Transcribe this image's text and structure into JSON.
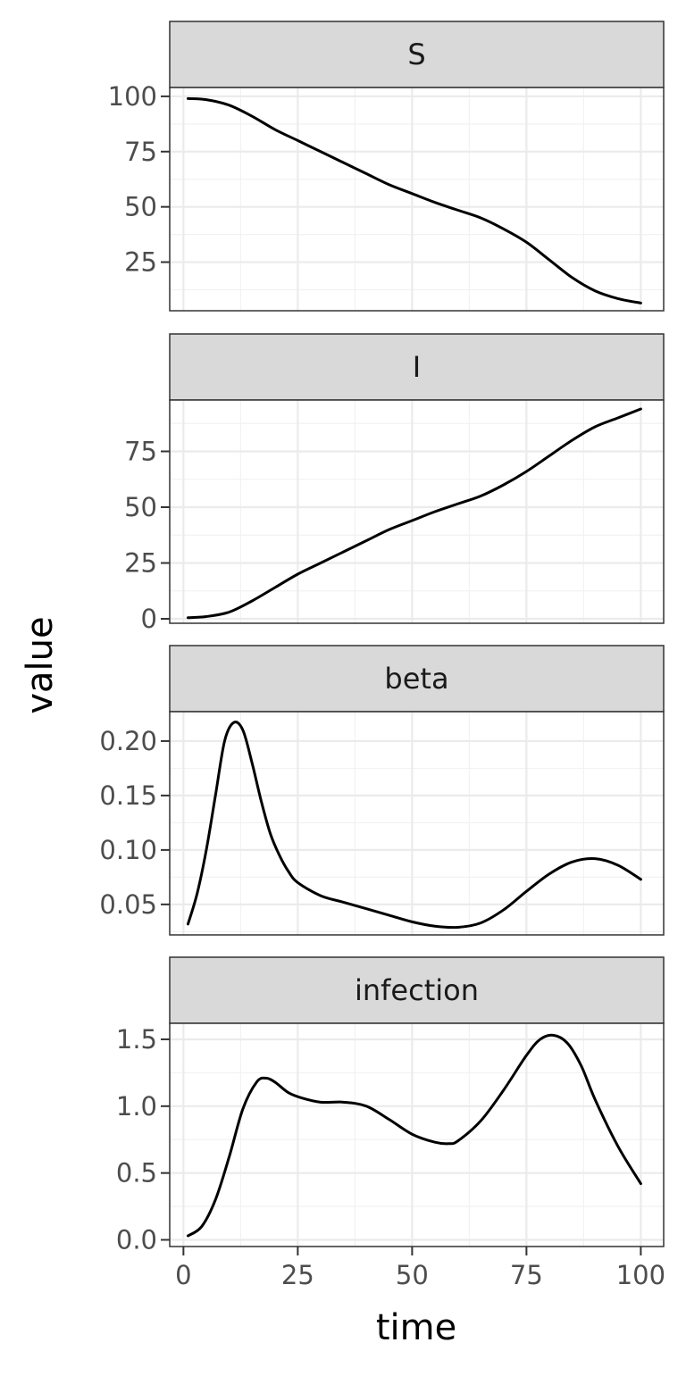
{
  "chart_data": {
    "type": "line",
    "xlabel": "time",
    "ylabel": "value",
    "xlim": [
      -3,
      105
    ],
    "x_ticks": [
      0,
      25,
      50,
      75,
      100
    ],
    "x_tick_labels": [
      "0",
      "25",
      "50",
      "75",
      "100"
    ],
    "grid": "on",
    "line_color": "#000000",
    "panels": [
      {
        "name": "S",
        "ylim": [
          3,
          104
        ],
        "y_ticks": [
          25,
          50,
          75,
          100
        ],
        "y_tick_labels": [
          "25",
          "50",
          "75",
          "100"
        ],
        "x": [
          1,
          5,
          10,
          15,
          20,
          25,
          30,
          35,
          40,
          45,
          50,
          55,
          60,
          65,
          70,
          75,
          80,
          85,
          90,
          95,
          100
        ],
        "values": [
          99,
          98.5,
          96,
          91,
          85,
          80,
          75,
          70,
          65,
          60,
          56,
          52,
          48.5,
          45,
          40,
          34,
          26,
          18,
          12,
          8.5,
          6.5
        ]
      },
      {
        "name": "I",
        "ylim": [
          -2,
          98
        ],
        "y_ticks": [
          0,
          25,
          50,
          75
        ],
        "y_tick_labels": [
          "0",
          "25",
          "50",
          "75"
        ],
        "x": [
          1,
          5,
          10,
          15,
          20,
          25,
          30,
          35,
          40,
          45,
          50,
          55,
          60,
          65,
          70,
          75,
          80,
          85,
          90,
          95,
          100
        ],
        "values": [
          0.5,
          1,
          3,
          8,
          14,
          20,
          25,
          30,
          35,
          40,
          44,
          48,
          51.5,
          55,
          60,
          66,
          73,
          80,
          86,
          90,
          94
        ]
      },
      {
        "name": "beta",
        "ylim": [
          0.022,
          0.227
        ],
        "y_ticks": [
          0.05,
          0.1,
          0.15,
          0.2
        ],
        "y_tick_labels": [
          "0.05",
          "0.10",
          "0.15",
          "0.20"
        ],
        "x": [
          1,
          3,
          5,
          7,
          9,
          11,
          13,
          15,
          17,
          19,
          21,
          23,
          25,
          30,
          35,
          40,
          45,
          50,
          55,
          60,
          65,
          70,
          75,
          80,
          85,
          90,
          95,
          100
        ],
        "values": [
          0.032,
          0.06,
          0.1,
          0.15,
          0.2,
          0.217,
          0.21,
          0.18,
          0.145,
          0.115,
          0.095,
          0.08,
          0.07,
          0.058,
          0.052,
          0.046,
          0.04,
          0.034,
          0.03,
          0.029,
          0.033,
          0.045,
          0.062,
          0.078,
          0.089,
          0.092,
          0.086,
          0.073
        ]
      },
      {
        "name": "infection",
        "ylim": [
          -0.05,
          1.62
        ],
        "y_ticks": [
          0.0,
          0.5,
          1.0,
          1.5
        ],
        "y_tick_labels": [
          "0.0",
          "0.5",
          "1.0",
          "1.5"
        ],
        "x": [
          1,
          4,
          7,
          10,
          13,
          16,
          18,
          20,
          23,
          26,
          30,
          35,
          40,
          45,
          50,
          55,
          58,
          60,
          65,
          70,
          75,
          78,
          81,
          84,
          87,
          90,
          95,
          100
        ],
        "values": [
          0.03,
          0.1,
          0.3,
          0.62,
          0.98,
          1.18,
          1.21,
          1.18,
          1.1,
          1.06,
          1.03,
          1.03,
          1.0,
          0.9,
          0.79,
          0.73,
          0.72,
          0.74,
          0.89,
          1.12,
          1.38,
          1.5,
          1.53,
          1.47,
          1.3,
          1.05,
          0.7,
          0.42
        ]
      }
    ]
  }
}
